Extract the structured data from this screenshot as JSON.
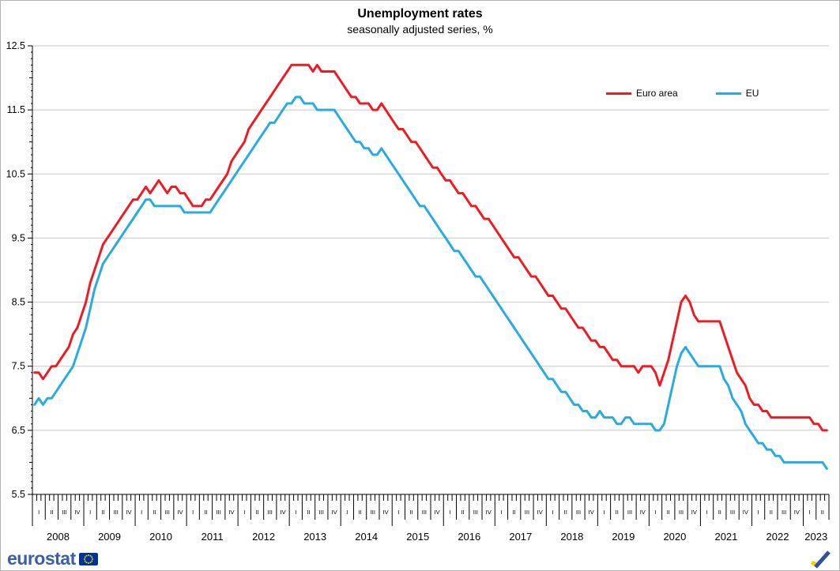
{
  "header": {
    "title": "Unemployment rates",
    "subtitle": "seasonally adjusted series, %"
  },
  "legend": {
    "items": [
      {
        "label": "Euro area",
        "color": "#ed1c24"
      },
      {
        "label": "EU",
        "color": "#29abe2"
      }
    ]
  },
  "footer": {
    "brand": "eurostat"
  },
  "chart_data": {
    "type": "line",
    "title": "Unemployment rates",
    "subtitle": "seasonally adjusted series, %",
    "unit": "%",
    "frequency": "monthly",
    "x_start": "2008-01",
    "x_end": "2023-06",
    "years": [
      "2008",
      "2009",
      "2010",
      "2011",
      "2012",
      "2013",
      "2014",
      "2015",
      "2016",
      "2017",
      "2018",
      "2019",
      "2020",
      "2021",
      "2022",
      "2023"
    ],
    "quarter_labels": [
      "I",
      "II",
      "III",
      "IV"
    ],
    "ylim": [
      5.5,
      12.5
    ],
    "yticks": [
      5.5,
      6.5,
      7.5,
      8.5,
      9.5,
      10.5,
      11.5,
      12.5
    ],
    "grid": "horizontal",
    "legend_position": "top-right",
    "series": [
      {
        "name": "Euro area",
        "color": "#ed1c24",
        "values": [
          7.4,
          7.4,
          7.3,
          7.4,
          7.5,
          7.5,
          7.6,
          7.7,
          7.8,
          8.0,
          8.1,
          8.3,
          8.5,
          8.8,
          9.0,
          9.2,
          9.4,
          9.5,
          9.6,
          9.7,
          9.8,
          9.9,
          10.0,
          10.1,
          10.1,
          10.2,
          10.3,
          10.2,
          10.3,
          10.4,
          10.3,
          10.2,
          10.3,
          10.3,
          10.2,
          10.2,
          10.1,
          10.0,
          10.0,
          10.0,
          10.1,
          10.1,
          10.2,
          10.3,
          10.4,
          10.5,
          10.7,
          10.8,
          10.9,
          11.0,
          11.2,
          11.3,
          11.4,
          11.5,
          11.6,
          11.7,
          11.8,
          11.9,
          12.0,
          12.1,
          12.2,
          12.2,
          12.2,
          12.2,
          12.2,
          12.1,
          12.2,
          12.1,
          12.1,
          12.1,
          12.1,
          12.0,
          11.9,
          11.8,
          11.7,
          11.7,
          11.6,
          11.6,
          11.6,
          11.5,
          11.5,
          11.6,
          11.5,
          11.4,
          11.3,
          11.2,
          11.2,
          11.1,
          11.0,
          11.0,
          10.9,
          10.8,
          10.7,
          10.6,
          10.6,
          10.5,
          10.4,
          10.4,
          10.3,
          10.2,
          10.2,
          10.1,
          10.0,
          10.0,
          9.9,
          9.8,
          9.8,
          9.7,
          9.6,
          9.5,
          9.4,
          9.3,
          9.2,
          9.2,
          9.1,
          9.0,
          8.9,
          8.9,
          8.8,
          8.7,
          8.6,
          8.6,
          8.5,
          8.4,
          8.4,
          8.3,
          8.2,
          8.1,
          8.1,
          8.0,
          7.9,
          7.9,
          7.8,
          7.8,
          7.7,
          7.6,
          7.6,
          7.5,
          7.5,
          7.5,
          7.5,
          7.4,
          7.5,
          7.5,
          7.5,
          7.4,
          7.2,
          7.4,
          7.6,
          7.9,
          8.2,
          8.5,
          8.6,
          8.5,
          8.3,
          8.2,
          8.2,
          8.2,
          8.2,
          8.2,
          8.2,
          8.0,
          7.8,
          7.6,
          7.4,
          7.3,
          7.2,
          7.0,
          6.9,
          6.9,
          6.8,
          6.8,
          6.7,
          6.7,
          6.7,
          6.7,
          6.7,
          6.7,
          6.7,
          6.7,
          6.7,
          6.7,
          6.6,
          6.6,
          6.5,
          6.5
        ]
      },
      {
        "name": "EU",
        "color": "#29abe2",
        "values": [
          6.9,
          7.0,
          6.9,
          7.0,
          7.0,
          7.1,
          7.2,
          7.3,
          7.4,
          7.5,
          7.7,
          7.9,
          8.1,
          8.4,
          8.7,
          8.9,
          9.1,
          9.2,
          9.3,
          9.4,
          9.5,
          9.6,
          9.7,
          9.8,
          9.9,
          10.0,
          10.1,
          10.1,
          10.0,
          10.0,
          10.0,
          10.0,
          10.0,
          10.0,
          10.0,
          9.9,
          9.9,
          9.9,
          9.9,
          9.9,
          9.9,
          9.9,
          10.0,
          10.1,
          10.2,
          10.3,
          10.4,
          10.5,
          10.6,
          10.7,
          10.8,
          10.9,
          11.0,
          11.1,
          11.2,
          11.3,
          11.3,
          11.4,
          11.5,
          11.6,
          11.6,
          11.7,
          11.7,
          11.6,
          11.6,
          11.6,
          11.5,
          11.5,
          11.5,
          11.5,
          11.5,
          11.4,
          11.3,
          11.2,
          11.1,
          11.0,
          11.0,
          10.9,
          10.9,
          10.8,
          10.8,
          10.9,
          10.8,
          10.7,
          10.6,
          10.5,
          10.4,
          10.3,
          10.2,
          10.1,
          10.0,
          10.0,
          9.9,
          9.8,
          9.7,
          9.6,
          9.5,
          9.4,
          9.3,
          9.3,
          9.2,
          9.1,
          9.0,
          8.9,
          8.9,
          8.8,
          8.7,
          8.6,
          8.5,
          8.4,
          8.3,
          8.2,
          8.1,
          8.0,
          7.9,
          7.8,
          7.7,
          7.6,
          7.5,
          7.4,
          7.3,
          7.3,
          7.2,
          7.1,
          7.1,
          7.0,
          6.9,
          6.9,
          6.8,
          6.8,
          6.7,
          6.7,
          6.8,
          6.7,
          6.7,
          6.7,
          6.6,
          6.6,
          6.7,
          6.7,
          6.6,
          6.6,
          6.6,
          6.6,
          6.6,
          6.5,
          6.5,
          6.6,
          6.9,
          7.2,
          7.5,
          7.7,
          7.8,
          7.7,
          7.6,
          7.5,
          7.5,
          7.5,
          7.5,
          7.5,
          7.5,
          7.3,
          7.2,
          7.0,
          6.9,
          6.8,
          6.6,
          6.5,
          6.4,
          6.3,
          6.3,
          6.2,
          6.2,
          6.1,
          6.1,
          6.0,
          6.0,
          6.0,
          6.0,
          6.0,
          6.0,
          6.0,
          6.0,
          6.0,
          6.0,
          5.9
        ]
      }
    ]
  }
}
